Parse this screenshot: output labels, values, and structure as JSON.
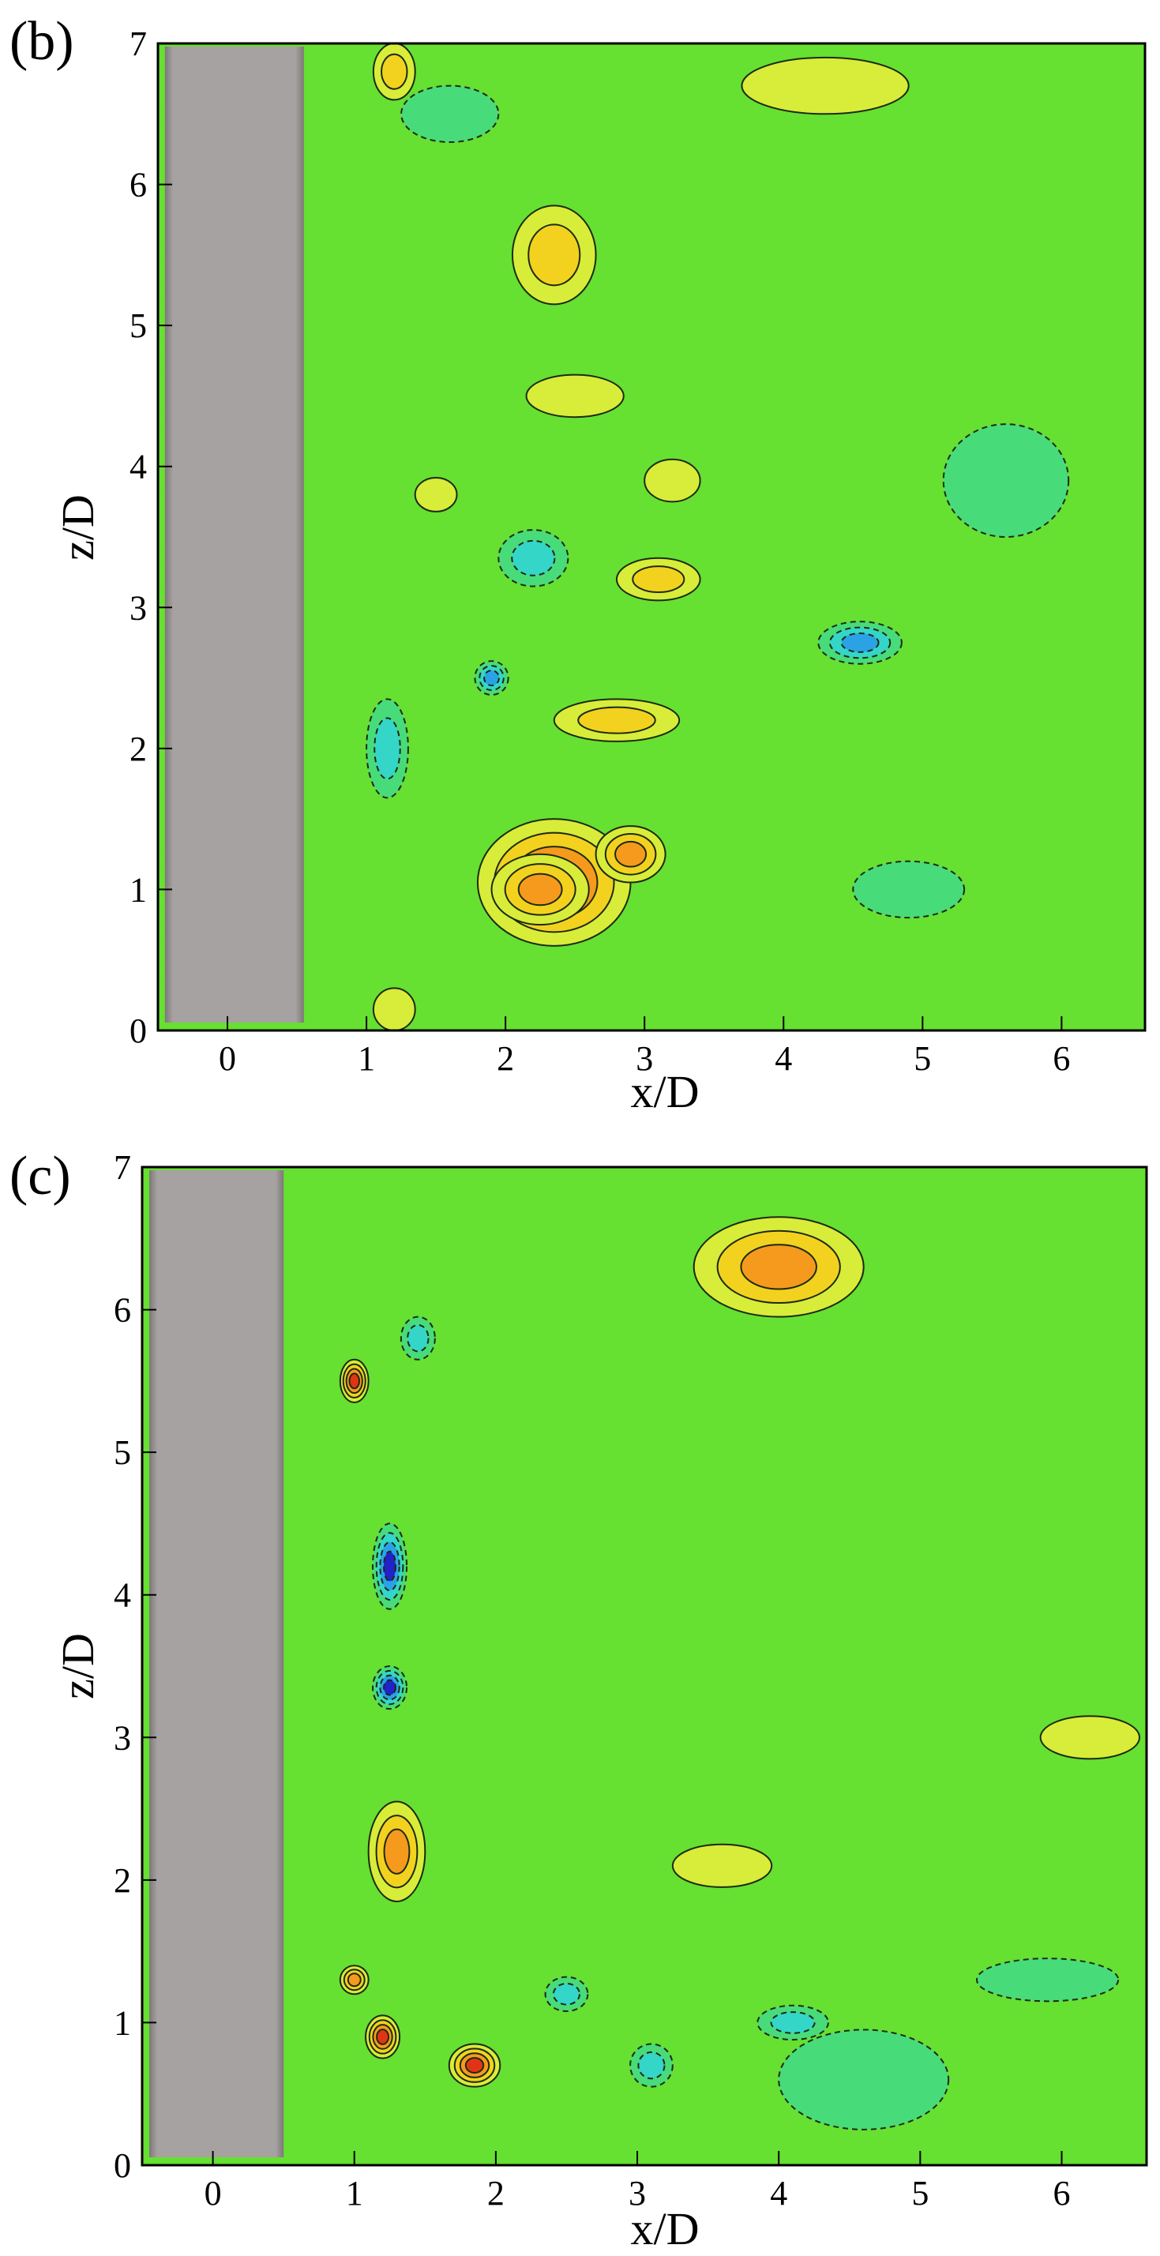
{
  "colors": {
    "background_field": "#66e031",
    "cylinder": "#a7a2a2",
    "cylinder_edge": "#7d7878",
    "contour_line": "#1c2a14",
    "scale": [
      "#2222c8",
      "#2aa3e6",
      "#34d6c8",
      "#48db7a",
      "#8ae23a",
      "#d8ec3a",
      "#f2d21e",
      "#f59a1c",
      "#e03515"
    ]
  },
  "chart_data": [
    {
      "type": "heatmap",
      "panel_label": "(b)",
      "xlabel": "x/D",
      "ylabel": "z/D",
      "xlim": [
        -0.5,
        6.6
      ],
      "ylim": [
        0,
        7
      ],
      "xticks": [
        "0",
        "1",
        "2",
        "3",
        "4",
        "5",
        "6"
      ],
      "yticks": [
        "0",
        "1",
        "2",
        "3",
        "4",
        "5",
        "6",
        "7"
      ],
      "cylinder_x": [
        -0.45,
        0.55
      ],
      "features": [
        {
          "x": 2.35,
          "z": 1.05,
          "level": 4,
          "sx": 0.55,
          "sz": 0.45
        },
        {
          "x": 2.25,
          "z": 1.0,
          "level": 3,
          "sx": 0.35,
          "sz": 0.25
        },
        {
          "x": 2.9,
          "z": 1.25,
          "level": 3,
          "sx": 0.25,
          "sz": 0.2
        },
        {
          "x": 1.2,
          "z": 6.8,
          "level": 2,
          "sx": 0.15,
          "sz": 0.2
        },
        {
          "x": 2.35,
          "z": 5.5,
          "level": 2,
          "sx": 0.3,
          "sz": 0.35
        },
        {
          "x": 2.5,
          "z": 4.5,
          "level": 1,
          "sx": 0.35,
          "sz": 0.15
        },
        {
          "x": 3.1,
          "z": 3.2,
          "level": 2,
          "sx": 0.3,
          "sz": 0.15
        },
        {
          "x": 2.8,
          "z": 2.2,
          "level": 2,
          "sx": 0.45,
          "sz": 0.15
        },
        {
          "x": 4.3,
          "z": 6.7,
          "level": 1,
          "sx": 0.6,
          "sz": 0.2
        },
        {
          "x": 3.2,
          "z": 3.9,
          "level": 1,
          "sx": 0.2,
          "sz": 0.15
        },
        {
          "x": 1.5,
          "z": 3.8,
          "level": 1,
          "sx": 0.15,
          "sz": 0.12
        },
        {
          "x": 1.2,
          "z": 0.15,
          "level": 1,
          "sx": 0.15,
          "sz": 0.15
        },
        {
          "x": 4.55,
          "z": 2.75,
          "level": -3,
          "sx": 0.3,
          "sz": 0.15
        },
        {
          "x": 1.9,
          "z": 2.5,
          "level": -3,
          "sx": 0.12,
          "sz": 0.12
        },
        {
          "x": 1.15,
          "z": 2.0,
          "level": -2,
          "sx": 0.15,
          "sz": 0.35
        },
        {
          "x": 2.2,
          "z": 3.35,
          "level": -2,
          "sx": 0.25,
          "sz": 0.2
        },
        {
          "x": 1.6,
          "z": 6.5,
          "level": -1,
          "sx": 0.35,
          "sz": 0.2
        },
        {
          "x": 4.9,
          "z": 1.0,
          "level": -1,
          "sx": 0.4,
          "sz": 0.2
        },
        {
          "x": 5.6,
          "z": 3.9,
          "level": -1,
          "sx": 0.45,
          "sz": 0.4
        }
      ]
    },
    {
      "type": "heatmap",
      "panel_label": "(c)",
      "xlabel": "x/D",
      "ylabel": "z/D",
      "xlim": [
        -0.5,
        6.6
      ],
      "ylim": [
        0,
        7
      ],
      "xticks": [
        "0",
        "1",
        "2",
        "3",
        "4",
        "5",
        "6"
      ],
      "yticks": [
        "0",
        "1",
        "2",
        "3",
        "4",
        "5",
        "6",
        "7"
      ],
      "cylinder_x": [
        -0.45,
        0.5
      ],
      "features": [
        {
          "x": 1.0,
          "z": 5.5,
          "level": 4,
          "sx": 0.1,
          "sz": 0.15
        },
        {
          "x": 1.2,
          "z": 0.9,
          "level": 4,
          "sx": 0.12,
          "sz": 0.15
        },
        {
          "x": 1.85,
          "z": 0.7,
          "level": 4,
          "sx": 0.18,
          "sz": 0.15
        },
        {
          "x": 1.0,
          "z": 1.3,
          "level": 3,
          "sx": 0.1,
          "sz": 0.1
        },
        {
          "x": 1.3,
          "z": 2.2,
          "level": 3,
          "sx": 0.2,
          "sz": 0.35
        },
        {
          "x": 4.0,
          "z": 6.3,
          "level": 3,
          "sx": 0.6,
          "sz": 0.35
        },
        {
          "x": 3.6,
          "z": 2.1,
          "level": 1,
          "sx": 0.35,
          "sz": 0.15
        },
        {
          "x": 6.2,
          "z": 3.0,
          "level": 1,
          "sx": 0.35,
          "sz": 0.15
        },
        {
          "x": 1.25,
          "z": 4.2,
          "level": -4,
          "sx": 0.12,
          "sz": 0.3
        },
        {
          "x": 1.25,
          "z": 3.35,
          "level": -4,
          "sx": 0.12,
          "sz": 0.15
        },
        {
          "x": 2.5,
          "z": 1.2,
          "level": -2,
          "sx": 0.15,
          "sz": 0.12
        },
        {
          "x": 3.1,
          "z": 0.7,
          "level": -2,
          "sx": 0.15,
          "sz": 0.15
        },
        {
          "x": 4.6,
          "z": 0.6,
          "level": -1,
          "sx": 0.6,
          "sz": 0.35
        },
        {
          "x": 4.1,
          "z": 1.0,
          "level": -2,
          "sx": 0.25,
          "sz": 0.12
        },
        {
          "x": 1.45,
          "z": 5.8,
          "level": -2,
          "sx": 0.12,
          "sz": 0.15
        },
        {
          "x": 5.9,
          "z": 1.3,
          "level": -1,
          "sx": 0.5,
          "sz": 0.15
        }
      ]
    }
  ]
}
